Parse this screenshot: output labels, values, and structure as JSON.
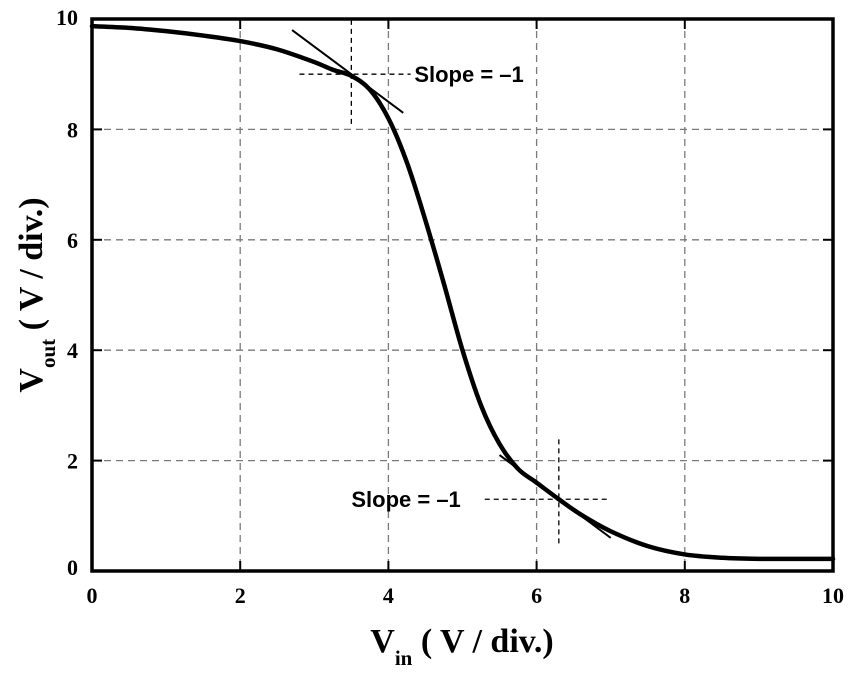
{
  "chart_data": {
    "type": "line",
    "xlabel": {
      "main": "V",
      "sub": "in",
      "rest": " ( V / div.)"
    },
    "ylabel": {
      "main": "V",
      "sub": "out",
      "rest": " ( V / div.)"
    },
    "xlim": [
      0,
      10
    ],
    "ylim": [
      0,
      10
    ],
    "x_ticks": [
      0,
      2,
      4,
      6,
      8,
      10
    ],
    "y_ticks": [
      0,
      2,
      4,
      6,
      8,
      10
    ],
    "x_tick_labels": [
      "0",
      "2",
      "4",
      "6",
      "8",
      "10"
    ],
    "y_tick_labels": [
      "0",
      "2",
      "4",
      "6",
      "8",
      "10"
    ],
    "grid": true,
    "series": [
      {
        "x": [
          0,
          0.5,
          1,
          1.5,
          2,
          2.5,
          3,
          3.25,
          3.5,
          3.75,
          4,
          4.25,
          4.5,
          4.75,
          5,
          5.25,
          5.5,
          5.75,
          6,
          6.3,
          6.6,
          7,
          7.5,
          8,
          8.5,
          9,
          9.5,
          10
        ],
        "y": [
          9.87,
          9.84,
          9.78,
          9.7,
          9.6,
          9.45,
          9.22,
          9.08,
          8.97,
          8.72,
          8.2,
          7.4,
          6.35,
          5.2,
          4.0,
          3.0,
          2.3,
          1.85,
          1.6,
          1.3,
          1.02,
          0.72,
          0.45,
          0.3,
          0.24,
          0.22,
          0.22,
          0.22
        ]
      }
    ],
    "annotations": [
      {
        "text": "Slope = –1",
        "point": [
          3.5,
          9.0
        ],
        "tangent_x": [
          2.7,
          4.2
        ],
        "cross_x": [
          2.8,
          4.3
        ],
        "cross_y": [
          8.1,
          10.0
        ],
        "label_at": [
          4.35,
          9.0
        ]
      },
      {
        "text": "Slope = –1",
        "point": [
          6.3,
          1.3
        ],
        "tangent_x": [
          5.5,
          7.0
        ],
        "cross_x": [
          5.3,
          7.0
        ],
        "cross_y": [
          0.5,
          2.4
        ],
        "label_at": [
          3.5,
          1.3
        ]
      }
    ]
  }
}
